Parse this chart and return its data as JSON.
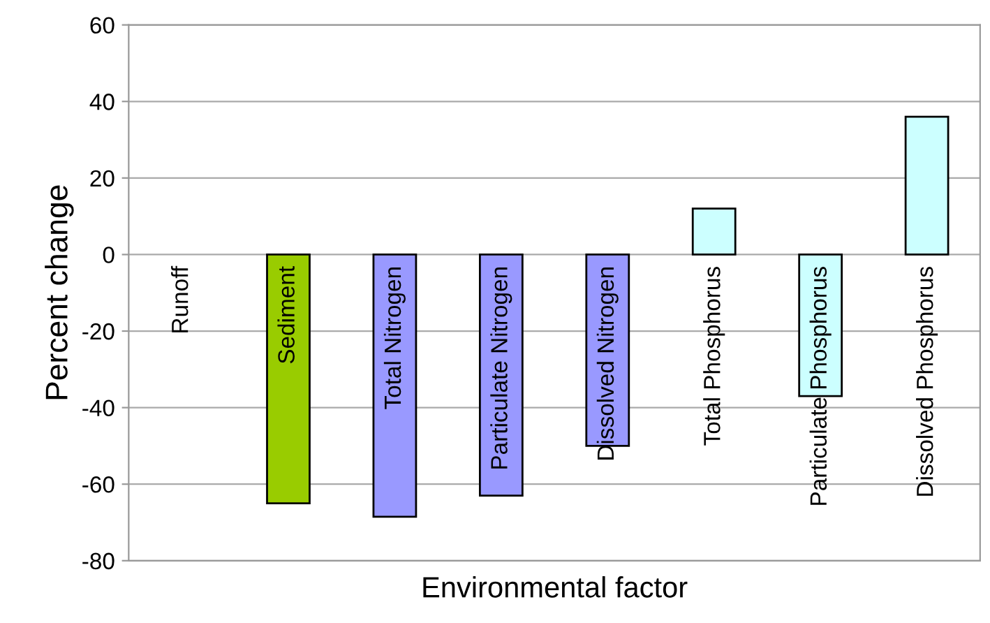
{
  "chart_data": {
    "type": "bar",
    "xlabel": "Environmental factor",
    "ylabel": "Percent change",
    "categories": [
      "Runoff",
      "Sediment",
      "Total Nitrogen",
      "Particulate Nitrogen",
      "Dissolved Nitrogen",
      "Total Phosphorus",
      "Particulate Phosphorus",
      "Dissolved Phosphorus"
    ],
    "values": [
      0,
      -65,
      -68.5,
      -63,
      -50,
      12,
      -37,
      36
    ],
    "colors": [
      "#ffffff",
      "#99cc00",
      "#9999ff",
      "#9999ff",
      "#9999ff",
      "#ccffff",
      "#ccffff",
      "#ccffff"
    ],
    "ylim": [
      -80,
      60
    ],
    "yticks": [
      -80,
      -60,
      -40,
      -20,
      0,
      20,
      40,
      60
    ],
    "grid": "y",
    "legend": false
  }
}
